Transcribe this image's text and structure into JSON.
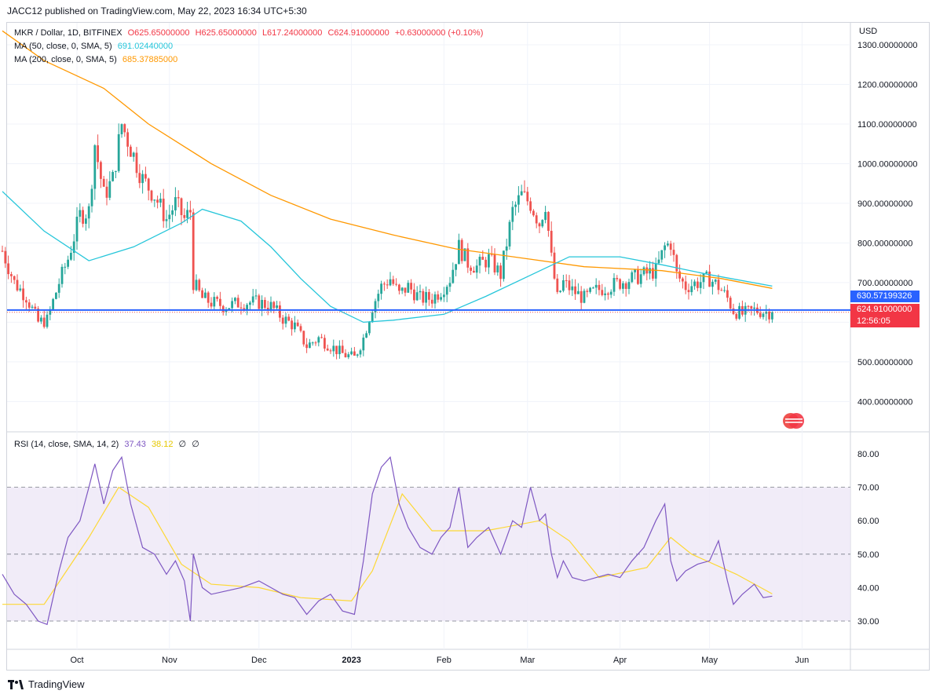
{
  "publisher_line": "JACC12 published on TradingView.com, May 22, 2023 16:34 UTC+5:30",
  "legend": {
    "symbol": "MKR / Dollar, 1D, BITFINEX",
    "open": "O625.65000000",
    "high": "H625.65000000",
    "low": "L617.24000000",
    "close": "C624.91000000",
    "change": "+0.63000000 (+0.10%)",
    "ma50_label": "MA (50, close, 0, SMA, 5)",
    "ma50_value": "691.02440000",
    "ma200_label": "MA (200, close, 0, SMA, 5)",
    "ma200_value": "685.37885000",
    "rsi_label": "RSI (14, close, SMA, 14, 2)",
    "rsi_value": "37.43",
    "rsi_ma_value": "38.12",
    "rsi_extra1": "∅",
    "rsi_extra2": "∅"
  },
  "currency": "USD",
  "price_tags": {
    "line_price": "630.57199326",
    "last_price": "624.91000000",
    "countdown": "12:56:05"
  },
  "footer": {
    "brand": "TradingView",
    "logo_icon": "tradingview-logo-icon"
  },
  "colors": {
    "up": "#26a69a",
    "down": "#ef5350",
    "ma50": "#26c6da",
    "ma200": "#ff9800",
    "rsi": "#7e57c2",
    "rsi_ma": "#fdd835",
    "hline": "#2962ff",
    "rsi_band": "#ede7f6"
  },
  "chart_data": [
    {
      "type": "candlestick",
      "title": "MKR / Dollar, 1D, BITFINEX",
      "x_ticks": [
        "Oct",
        "Nov",
        "Dec",
        "2023",
        "Feb",
        "Mar",
        "Apr",
        "May",
        "Jun"
      ],
      "y_ticks": [
        "400.00000000",
        "500.00000000",
        "600.00000000",
        "700.00000000",
        "800.00000000",
        "900.00000000",
        "1000.00000000",
        "1100.00000000",
        "1200.00000000",
        "1300.00000000"
      ],
      "ylim": [
        325,
        1335
      ],
      "horizontal_line": 630.57,
      "close_path": [
        [
          "Sep 6",
          780
        ],
        [
          "Sep 10",
          700
        ],
        [
          "Sep 14",
          665
        ],
        [
          "Sep 18",
          600
        ],
        [
          "Sep 21",
          605
        ],
        [
          "Sep 25",
          700
        ],
        [
          "Sep 28",
          760
        ],
        [
          "Oct 2",
          870
        ],
        [
          "Oct 5",
          880
        ],
        [
          "Oct 7",
          1050
        ],
        [
          "Oct 10",
          920
        ],
        [
          "Oct 13",
          960
        ],
        [
          "Oct 16",
          1100
        ],
        [
          "Oct 19",
          1040
        ],
        [
          "Oct 23",
          960
        ],
        [
          "Oct 27",
          920
        ],
        [
          "Oct 31",
          860
        ],
        [
          "Nov 3",
          900
        ],
        [
          "Nov 6",
          860
        ],
        [
          "Nov 8",
          880
        ],
        [
          "Nov 9",
          700
        ],
        [
          "Nov 12",
          660
        ],
        [
          "Nov 15",
          650
        ],
        [
          "Nov 20",
          640
        ],
        [
          "Nov 25",
          650
        ],
        [
          "Dec 1",
          650
        ],
        [
          "Dec 5",
          640
        ],
        [
          "Dec 9",
          610
        ],
        [
          "Dec 13",
          590
        ],
        [
          "Dec 17",
          540
        ],
        [
          "Dec 21",
          560
        ],
        [
          "Dec 25",
          540
        ],
        [
          "Dec 29",
          520
        ],
        [
          "Jan 2",
          510
        ],
        [
          "Jan 5",
          560
        ],
        [
          "Jan 8",
          640
        ],
        [
          "Jan 11",
          690
        ],
        [
          "Jan 14",
          710
        ],
        [
          "Jan 17",
          670
        ],
        [
          "Jan 20",
          690
        ],
        [
          "Jan 24",
          660
        ],
        [
          "Jan 28",
          660
        ],
        [
          "Jan 31",
          680
        ],
        [
          "Feb 3",
          710
        ],
        [
          "Feb 6",
          790
        ],
        [
          "Feb 9",
          750
        ],
        [
          "Feb 12",
          740
        ],
        [
          "Feb 16",
          760
        ],
        [
          "Feb 20",
          720
        ],
        [
          "Feb 24",
          880
        ],
        [
          "Feb 27",
          920
        ],
        [
          "Mar 2",
          900
        ],
        [
          "Mar 5",
          850
        ],
        [
          "Mar 7",
          900
        ],
        [
          "Mar 9",
          760
        ],
        [
          "Mar 11",
          660
        ],
        [
          "Mar 13",
          700
        ],
        [
          "Mar 16",
          680
        ],
        [
          "Mar 20",
          660
        ],
        [
          "Mar 24",
          680
        ],
        [
          "Mar 28",
          690
        ],
        [
          "Apr 1",
          700
        ],
        [
          "Apr 5",
          710
        ],
        [
          "Apr 9",
          720
        ],
        [
          "Apr 13",
          730
        ],
        [
          "Apr 16",
          790
        ],
        [
          "Apr 18",
          800
        ],
        [
          "Apr 20",
          720
        ],
        [
          "Apr 23",
          690
        ],
        [
          "Apr 27",
          700
        ],
        [
          "May 1",
          710
        ],
        [
          "May 4",
          690
        ],
        [
          "May 7",
          660
        ],
        [
          "May 9",
          630
        ],
        [
          "May 12",
          620
        ],
        [
          "May 16",
          630
        ],
        [
          "May 19",
          627
        ],
        [
          "May 22",
          624.9
        ]
      ],
      "ma50": [
        [
          "Sep 6",
          930
        ],
        [
          "Sep 20",
          830
        ],
        [
          "Oct 5",
          755
        ],
        [
          "Oct 20",
          790
        ],
        [
          "Nov 5",
          850
        ],
        [
          "Nov 12",
          885
        ],
        [
          "Nov 25",
          855
        ],
        [
          "Dec 5",
          790
        ],
        [
          "Dec 15",
          710
        ],
        [
          "Dec 25",
          640
        ],
        [
          "Jan 5",
          600
        ],
        [
          "Jan 15",
          605
        ],
        [
          "Feb 1",
          620
        ],
        [
          "Feb 15",
          665
        ],
        [
          "Mar 1",
          715
        ],
        [
          "Mar 15",
          765
        ],
        [
          "Apr 1",
          765
        ],
        [
          "Apr 15",
          745
        ],
        [
          "May 1",
          720
        ],
        [
          "May 22",
          691.02
        ]
      ],
      "ma200": [
        [
          "Sep 6",
          1335
        ],
        [
          "Sep 20",
          1260
        ],
        [
          "Oct 10",
          1190
        ],
        [
          "Oct 25",
          1100
        ],
        [
          "Nov 15",
          1000
        ],
        [
          "Dec 5",
          920
        ],
        [
          "Dec 25",
          860
        ],
        [
          "Jan 15",
          820
        ],
        [
          "Feb 5",
          785
        ],
        [
          "Mar 1",
          760
        ],
        [
          "Mar 20",
          740
        ],
        [
          "Apr 15",
          730
        ],
        [
          "May 5",
          710
        ],
        [
          "May 22",
          685.38
        ]
      ]
    },
    {
      "type": "line",
      "title": "RSI (14, close, SMA, 14, 2)",
      "y_ticks": [
        "30.00",
        "40.00",
        "50.00",
        "60.00",
        "70.00",
        "80.00"
      ],
      "ylim": [
        22,
        84
      ],
      "band": [
        30,
        70
      ],
      "midline": 50,
      "series": [
        {
          "name": "RSI",
          "points": [
            [
              "Sep 6",
              44
            ],
            [
              "Sep 10",
              38
            ],
            [
              "Sep 14",
              35
            ],
            [
              "Sep 18",
              30
            ],
            [
              "Sep 21",
              29
            ],
            [
              "Sep 25",
              45
            ],
            [
              "Sep 28",
              55
            ],
            [
              "Oct 2",
              60
            ],
            [
              "Oct 5",
              70
            ],
            [
              "Oct 7",
              77
            ],
            [
              "Oct 10",
              65
            ],
            [
              "Oct 13",
              75
            ],
            [
              "Oct 16",
              79
            ],
            [
              "Oct 19",
              65
            ],
            [
              "Oct 23",
              52
            ],
            [
              "Oct 27",
              50
            ],
            [
              "Oct 31",
              44
            ],
            [
              "Nov 3",
              48
            ],
            [
              "Nov 6",
              42
            ],
            [
              "Nov 8",
              30
            ],
            [
              "Nov 9",
              50
            ],
            [
              "Nov 12",
              40
            ],
            [
              "Nov 15",
              38
            ],
            [
              "Nov 20",
              39
            ],
            [
              "Nov 25",
              40
            ],
            [
              "Dec 1",
              42
            ],
            [
              "Dec 5",
              40
            ],
            [
              "Dec 9",
              38
            ],
            [
              "Dec 13",
              37
            ],
            [
              "Dec 17",
              32
            ],
            [
              "Dec 21",
              36
            ],
            [
              "Dec 25",
              38
            ],
            [
              "Dec 29",
              33
            ],
            [
              "Jan 2",
              32
            ],
            [
              "Jan 5",
              48
            ],
            [
              "Jan 8",
              68
            ],
            [
              "Jan 11",
              76
            ],
            [
              "Jan 14",
              79
            ],
            [
              "Jan 17",
              65
            ],
            [
              "Jan 20",
              58
            ],
            [
              "Jan 24",
              52
            ],
            [
              "Jan 28",
              50
            ],
            [
              "Jan 31",
              55
            ],
            [
              "Feb 3",
              58
            ],
            [
              "Feb 6",
              70
            ],
            [
              "Feb 9",
              52
            ],
            [
              "Feb 12",
              55
            ],
            [
              "Feb 16",
              58
            ],
            [
              "Feb 20",
              50
            ],
            [
              "Feb 24",
              60
            ],
            [
              "Feb 27",
              58
            ],
            [
              "Mar 2",
              70
            ],
            [
              "Mar 5",
              60
            ],
            [
              "Mar 7",
              62
            ],
            [
              "Mar 9",
              50
            ],
            [
              "Mar 11",
              43
            ],
            [
              "Mar 13",
              48
            ],
            [
              "Mar 16",
              43
            ],
            [
              "Mar 20",
              42
            ],
            [
              "Mar 24",
              43
            ],
            [
              "Mar 28",
              44
            ],
            [
              "Apr 1",
              43
            ],
            [
              "Apr 5",
              48
            ],
            [
              "Apr 9",
              52
            ],
            [
              "Apr 13",
              60
            ],
            [
              "Apr 16",
              65
            ],
            [
              "Apr 18",
              48
            ],
            [
              "Apr 20",
              42
            ],
            [
              "Apr 23",
              45
            ],
            [
              "Apr 27",
              47
            ],
            [
              "May 1",
              48
            ],
            [
              "May 4",
              54
            ],
            [
              "May 7",
              42
            ],
            [
              "May 9",
              35
            ],
            [
              "May 12",
              38
            ],
            [
              "May 16",
              41
            ],
            [
              "May 19",
              37
            ],
            [
              "May 22",
              37.43
            ]
          ]
        },
        {
          "name": "RSI MA",
          "points": [
            [
              "Sep 6",
              35
            ],
            [
              "Sep 20",
              35
            ],
            [
              "Oct 5",
              55
            ],
            [
              "Oct 15",
              70
            ],
            [
              "Oct 25",
              64
            ],
            [
              "Nov 5",
              47
            ],
            [
              "Nov 15",
              41
            ],
            [
              "Dec 1",
              40
            ],
            [
              "Dec 15",
              37
            ],
            [
              "Jan 1",
              36
            ],
            [
              "Jan 8",
              45
            ],
            [
              "Jan 18",
              68
            ],
            [
              "Jan 28",
              57
            ],
            [
              "Feb 15",
              57
            ],
            [
              "Mar 5",
              60
            ],
            [
              "Mar 15",
              54
            ],
            [
              "Mar 25",
              43
            ],
            [
              "Apr 10",
              46
            ],
            [
              "Apr 18",
              55
            ],
            [
              "Apr 25",
              50
            ],
            [
              "May 10",
              44
            ],
            [
              "May 22",
              38.12
            ]
          ]
        }
      ]
    }
  ]
}
